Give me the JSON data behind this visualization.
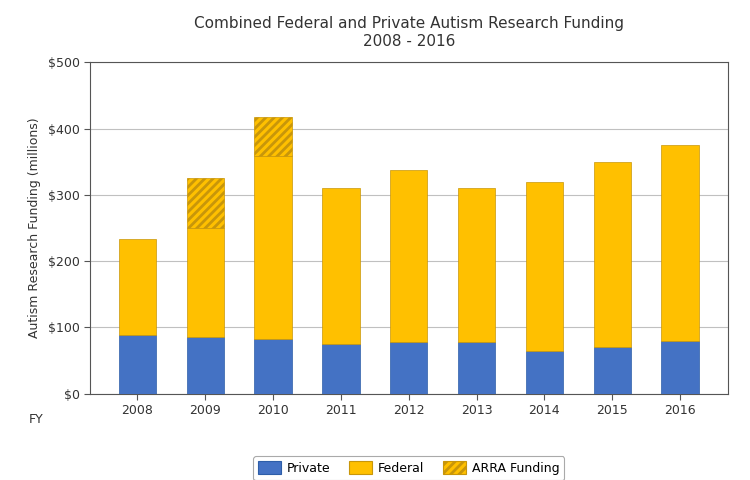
{
  "years": [
    "2008",
    "2009",
    "2010",
    "2011",
    "2012",
    "2013",
    "2014",
    "2015",
    "2016"
  ],
  "private": [
    88,
    85,
    83,
    75,
    78,
    78,
    65,
    70,
    80
  ],
  "federal_base": [
    145,
    165,
    275,
    235,
    260,
    232,
    255,
    280,
    295
  ],
  "arra": [
    0,
    75,
    60,
    0,
    0,
    0,
    0,
    0,
    0
  ],
  "title_line1": "Combined Federal and Private Autism Research Funding",
  "title_line2": "2008 - 2016",
  "ylabel": "Autism Research Funding (millions)",
  "xlabel": "FY",
  "private_color": "#4472C4",
  "federal_color": "#FFC000",
  "arra_color": "#FFC000",
  "ylim": [
    0,
    500
  ],
  "yticks": [
    0,
    100,
    200,
    300,
    400,
    500
  ],
  "ytick_labels": [
    "$0",
    "$100",
    "$200",
    "$300",
    "$400",
    "$500"
  ],
  "background_color": "#FFFFFF",
  "grid_color": "#C0C0C0",
  "legend_labels": [
    "Private",
    "Federal",
    "ARRA Funding"
  ],
  "fig_width": 7.5,
  "fig_height": 4.8,
  "dpi": 100
}
